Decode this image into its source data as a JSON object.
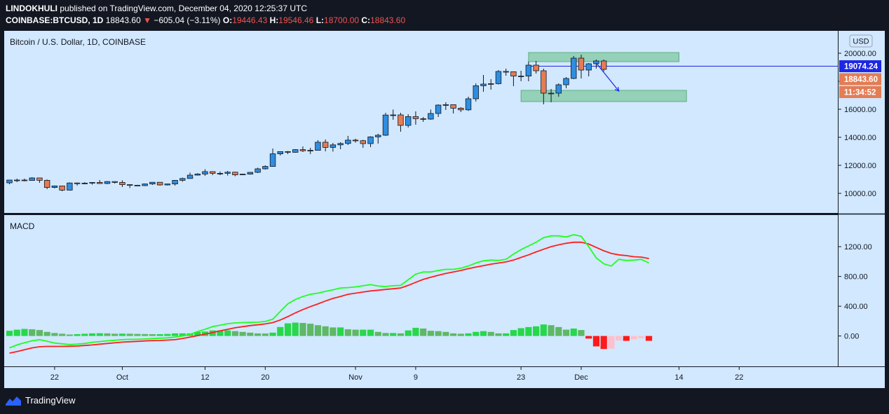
{
  "header": {
    "publisher": "LINDOKHULI",
    "published_text": "published on TradingView.com, December 04, 2020 12:25:37 UTC",
    "symbol": "COINBASE:BTCUSD, 1D",
    "last": "18843.60",
    "change": "−605.04 (−3.11%)",
    "o_label": "O:",
    "o": "19446.43",
    "h_label": "H:",
    "h": "19546.46",
    "l_label": "L:",
    "l": "18700.00",
    "c_label": "C:",
    "c": "18843.60"
  },
  "footer": {
    "brand": "TradingView",
    "logo_icon": "tradingview-logo-icon"
  },
  "chart_data": [
    {
      "type": "candlestick",
      "title": "Bitcoin / U.S. Dollar, 1D, COINBASE",
      "currency_button": "USD",
      "y_ticks": [
        "10000.00",
        "12000.00",
        "14000.00",
        "16000.00",
        "18000.00",
        "20000.00"
      ],
      "ylim": [
        9200,
        20800
      ],
      "price_tags": [
        {
          "value": "19074.24",
          "color": "#1e27e3"
        },
        {
          "value": "18843.60",
          "color": "#e47c54"
        },
        {
          "value": "11:34:52",
          "color": "#e47c54"
        }
      ],
      "horizontal_line": 19074.24,
      "zones": [
        {
          "from": "2020-11-24",
          "to": "2020-12-14",
          "low": 19400,
          "high": 20050
        },
        {
          "from": "2020-11-23",
          "to": "2020-12-15",
          "low": 16550,
          "high": 17350
        }
      ],
      "arrow": {
        "from": [
          "2020-12-03",
          19300
        ],
        "to": [
          "2020-12-06",
          17300
        ]
      },
      "x_ticks": [
        [
          "2020-09-22",
          "22"
        ],
        [
          "2020-10-01",
          "Oct"
        ],
        [
          "2020-10-12",
          "12"
        ],
        [
          "2020-10-20",
          "20"
        ],
        [
          "2020-11-01",
          "Nov"
        ],
        [
          "2020-11-09",
          "9"
        ],
        [
          "2020-11-23",
          "23"
        ],
        [
          "2020-12-01",
          "Dec"
        ],
        [
          "2020-12-14",
          "14"
        ],
        [
          "2020-12-22",
          "22"
        ]
      ],
      "candles": [
        [
          "2020-09-16",
          10750,
          10950,
          10650,
          10950
        ],
        [
          "2020-09-17",
          10950,
          11050,
          10800,
          10950
        ],
        [
          "2020-09-18",
          10950,
          11050,
          10850,
          10920
        ],
        [
          "2020-09-19",
          10920,
          11150,
          10900,
          11100
        ],
        [
          "2020-09-20",
          11100,
          11100,
          10750,
          10930
        ],
        [
          "2020-09-21",
          10930,
          10990,
          10300,
          10420
        ],
        [
          "2020-09-22",
          10420,
          10560,
          10350,
          10530
        ],
        [
          "2020-09-23",
          10530,
          10530,
          10150,
          10230
        ],
        [
          "2020-09-24",
          10230,
          10780,
          10200,
          10740
        ],
        [
          "2020-09-25",
          10740,
          10760,
          10550,
          10690
        ],
        [
          "2020-09-26",
          10690,
          10800,
          10650,
          10730
        ],
        [
          "2020-09-27",
          10730,
          10800,
          10620,
          10780
        ],
        [
          "2020-09-28",
          10780,
          10950,
          10680,
          10700
        ],
        [
          "2020-09-29",
          10700,
          10880,
          10650,
          10840
        ],
        [
          "2020-09-30",
          10840,
          10860,
          10700,
          10780
        ],
        [
          "2020-10-01",
          10780,
          10930,
          10450,
          10620
        ],
        [
          "2020-10-02",
          10620,
          10640,
          10380,
          10580
        ],
        [
          "2020-10-03",
          10580,
          10610,
          10520,
          10550
        ],
        [
          "2020-10-04",
          10550,
          10700,
          10520,
          10670
        ],
        [
          "2020-10-05",
          10670,
          10800,
          10600,
          10790
        ],
        [
          "2020-10-06",
          10790,
          10800,
          10550,
          10600
        ],
        [
          "2020-10-07",
          10600,
          10680,
          10560,
          10670
        ],
        [
          "2020-10-08",
          10670,
          10950,
          10550,
          10930
        ],
        [
          "2020-10-09",
          10930,
          11120,
          10830,
          11060
        ],
        [
          "2020-10-10",
          11060,
          11480,
          11050,
          11300
        ],
        [
          "2020-10-11",
          11300,
          11440,
          11270,
          11380
        ],
        [
          "2020-10-12",
          11380,
          11720,
          11250,
          11550
        ],
        [
          "2020-10-13",
          11550,
          11560,
          11300,
          11430
        ],
        [
          "2020-10-14",
          11430,
          11560,
          11300,
          11430
        ],
        [
          "2020-10-15",
          11430,
          11600,
          11270,
          11510
        ],
        [
          "2020-10-16",
          11510,
          11540,
          11220,
          11320
        ],
        [
          "2020-10-17",
          11320,
          11400,
          11300,
          11370
        ],
        [
          "2020-10-18",
          11370,
          11500,
          11340,
          11500
        ],
        [
          "2020-10-19",
          11500,
          11830,
          11450,
          11750
        ],
        [
          "2020-10-20",
          11750,
          12000,
          11700,
          11920
        ],
        [
          "2020-10-21",
          11920,
          13200,
          11900,
          12820
        ],
        [
          "2020-10-22",
          12820,
          13000,
          12700,
          12980
        ],
        [
          "2020-10-23",
          12980,
          13020,
          12800,
          12930
        ],
        [
          "2020-10-24",
          12930,
          13150,
          12900,
          13120
        ],
        [
          "2020-10-25",
          13120,
          13350,
          12950,
          13040
        ],
        [
          "2020-10-26",
          13040,
          13250,
          12800,
          13070
        ],
        [
          "2020-10-27",
          13070,
          13800,
          13050,
          13650
        ],
        [
          "2020-10-28",
          13650,
          13850,
          13000,
          13280
        ],
        [
          "2020-10-29",
          13280,
          13600,
          12980,
          13460
        ],
        [
          "2020-10-30",
          13460,
          13650,
          13150,
          13560
        ],
        [
          "2020-10-31",
          13560,
          14100,
          13450,
          13800
        ],
        [
          "2020-11-01",
          13800,
          13900,
          13620,
          13760
        ],
        [
          "2020-11-02",
          13760,
          13820,
          13250,
          13550
        ],
        [
          "2020-11-03",
          13550,
          14070,
          13300,
          14030
        ],
        [
          "2020-11-04",
          14030,
          14250,
          13550,
          14150
        ],
        [
          "2020-11-05",
          14150,
          15750,
          14100,
          15590
        ],
        [
          "2020-11-06",
          15590,
          15980,
          15250,
          15600
        ],
        [
          "2020-11-07",
          15600,
          15750,
          14400,
          14850
        ],
        [
          "2020-11-08",
          14850,
          15650,
          14700,
          15480
        ],
        [
          "2020-11-09",
          15480,
          15850,
          14900,
          15330
        ],
        [
          "2020-11-10",
          15330,
          15450,
          15100,
          15300
        ],
        [
          "2020-11-11",
          15300,
          15980,
          15250,
          15700
        ],
        [
          "2020-11-12",
          15700,
          16350,
          15450,
          16300
        ],
        [
          "2020-11-13",
          16300,
          16500,
          15950,
          16330
        ],
        [
          "2020-11-14",
          16330,
          16350,
          15700,
          16080
        ],
        [
          "2020-11-15",
          16080,
          16150,
          15800,
          15960
        ],
        [
          "2020-11-16",
          15960,
          16900,
          15880,
          16750
        ],
        [
          "2020-11-17",
          16750,
          17850,
          16550,
          17680
        ],
        [
          "2020-11-18",
          17680,
          18450,
          17250,
          17800
        ],
        [
          "2020-11-19",
          17800,
          18150,
          17400,
          17830
        ],
        [
          "2020-11-20",
          17830,
          18800,
          17770,
          18700
        ],
        [
          "2020-11-21",
          18700,
          18900,
          18400,
          18680
        ],
        [
          "2020-11-22",
          18680,
          18700,
          17650,
          18370
        ],
        [
          "2020-11-23",
          18370,
          18750,
          18000,
          18370
        ],
        [
          "2020-11-24",
          18370,
          19400,
          18000,
          19150
        ],
        [
          "2020-11-25",
          19150,
          19450,
          18550,
          18750
        ],
        [
          "2020-11-26",
          18750,
          18900,
          16350,
          17150
        ],
        [
          "2020-11-27",
          17150,
          17450,
          16500,
          17150
        ],
        [
          "2020-11-28",
          17150,
          17850,
          16900,
          17750
        ],
        [
          "2020-11-29",
          17750,
          18300,
          17500,
          18200
        ],
        [
          "2020-11-30",
          18200,
          19800,
          18150,
          19650
        ],
        [
          "2020-12-01",
          19650,
          19900,
          18200,
          18800
        ],
        [
          "2020-12-02",
          18800,
          19300,
          18350,
          19250
        ],
        [
          "2020-12-03",
          19250,
          19550,
          18900,
          19450
        ],
        [
          "2020-12-04",
          19450,
          19550,
          18700,
          18850
        ]
      ]
    },
    {
      "type": "macd",
      "title": "MACD",
      "y_ticks": [
        "0.00",
        "400.00",
        "800.00",
        "1200.00"
      ],
      "ylim": [
        -380,
        1540
      ],
      "macd_color": "#1eff1e",
      "signal_color": "#ff1e1e",
      "macd": [
        -160,
        -120,
        -90,
        -65,
        -50,
        -70,
        -95,
        -105,
        -115,
        -110,
        -100,
        -85,
        -75,
        -65,
        -58,
        -50,
        -45,
        -45,
        -40,
        -35,
        -30,
        -25,
        -15,
        0,
        20,
        60,
        90,
        125,
        145,
        165,
        175,
        180,
        182,
        185,
        195,
        225,
        330,
        430,
        490,
        530,
        560,
        575,
        600,
        620,
        645,
        650,
        660,
        675,
        690,
        670,
        665,
        675,
        680,
        755,
        830,
        860,
        860,
        880,
        895,
        895,
        910,
        940,
        980,
        1010,
        1020,
        1015,
        1030,
        1100,
        1160,
        1210,
        1260,
        1320,
        1345,
        1345,
        1330,
        1360,
        1340,
        1200,
        1050,
        970,
        940,
        1030,
        1015,
        1020,
        1030,
        980
      ],
      "signal": [
        -230,
        -210,
        -185,
        -160,
        -145,
        -140,
        -140,
        -140,
        -138,
        -135,
        -128,
        -120,
        -110,
        -100,
        -92,
        -83,
        -77,
        -72,
        -67,
        -62,
        -60,
        -55,
        -50,
        -35,
        -15,
        5,
        25,
        45,
        70,
        90,
        110,
        125,
        140,
        150,
        162,
        180,
        215,
        260,
        310,
        355,
        395,
        430,
        470,
        505,
        530,
        560,
        575,
        590,
        605,
        615,
        625,
        635,
        645,
        680,
        720,
        760,
        790,
        815,
        840,
        860,
        880,
        905,
        925,
        945,
        965,
        980,
        995,
        1020,
        1055,
        1090,
        1130,
        1165,
        1200,
        1225,
        1245,
        1260,
        1260,
        1235,
        1190,
        1145,
        1110,
        1090,
        1080,
        1065,
        1060,
        1040
      ],
      "histogram": [
        70,
        85,
        95,
        90,
        80,
        55,
        40,
        30,
        20,
        25,
        30,
        35,
        37,
        35,
        30,
        32,
        30,
        28,
        26,
        25,
        25,
        28,
        35,
        35,
        35,
        55,
        60,
        75,
        75,
        75,
        65,
        55,
        45,
        35,
        33,
        45,
        120,
        170,
        180,
        175,
        165,
        145,
        130,
        115,
        115,
        90,
        85,
        85,
        85,
        55,
        40,
        40,
        35,
        75,
        110,
        100,
        70,
        65,
        55,
        35,
        30,
        35,
        55,
        65,
        55,
        35,
        35,
        80,
        105,
        120,
        130,
        155,
        145,
        120,
        85,
        100,
        80,
        -35,
        -140,
        -175,
        -170,
        -60,
        -65,
        -45,
        -30,
        -65
      ]
    }
  ]
}
